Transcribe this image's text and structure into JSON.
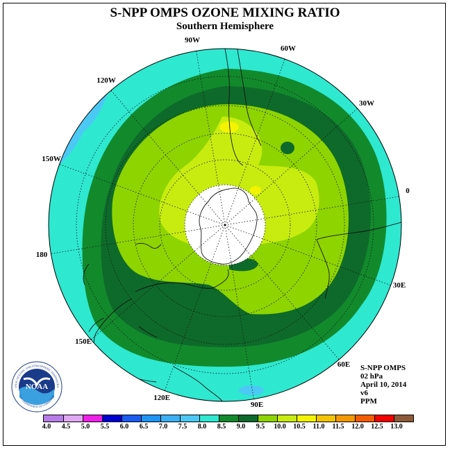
{
  "header": {
    "title": "S-NPP OMPS OZONE MIXING RATIO",
    "subtitle": "Southern Hemisphere"
  },
  "map": {
    "projection": "south polar stereographic",
    "longitude_labels": [
      "90W",
      "60W",
      "30W",
      "0",
      "30E",
      "60E",
      "90E",
      "120E",
      "150E",
      "180",
      "150W",
      "120W"
    ],
    "fill_colors": {
      "7.0-7.5": "#4cc8f4",
      "7.5-8.0": "#2ee8d0",
      "8.0-8.5": "#128a2c",
      "8.5-9.0": "#0e6a2a",
      "9.0-9.5": "#8ed400",
      "9.5-10.0": "#c8ec10",
      "10.0-10.5": "#f4f400",
      "no_data": "#ffffff"
    }
  },
  "info": {
    "instrument": "S-NPP OMPS",
    "level": "02 hPa",
    "date": "April 10, 2014",
    "version": "v6",
    "units": "PPM"
  },
  "colorbar": {
    "ticks": [
      "4.0",
      "4.5",
      "5.0",
      "5.5",
      "6.0",
      "6.5",
      "7.0",
      "7.5",
      "8.0",
      "8.5",
      "9.0",
      "9.5",
      "10.0",
      "10.5",
      "11.0",
      "11.5",
      "12.0",
      "12.5",
      "13.0"
    ],
    "colors": [
      "#b87ce8",
      "#e0a8f4",
      "#f020e8",
      "#0000d0",
      "#1c5cf0",
      "#1e94f4",
      "#3cb0f4",
      "#4cc8f4",
      "#2ee8d0",
      "#128a2c",
      "#0e6a2a",
      "#8ed400",
      "#c8ec10",
      "#f4f400",
      "#f4c400",
      "#f49800",
      "#f45c00",
      "#f00000",
      "#8c5a38"
    ]
  },
  "logo": {
    "text": "NOAA",
    "ring_text": "NATIONAL OCEANIC AND ATMOSPHERIC ADMINISTRATION",
    "lower_ring_text": "U.S. DEPARTMENT OF COMMERCE"
  }
}
